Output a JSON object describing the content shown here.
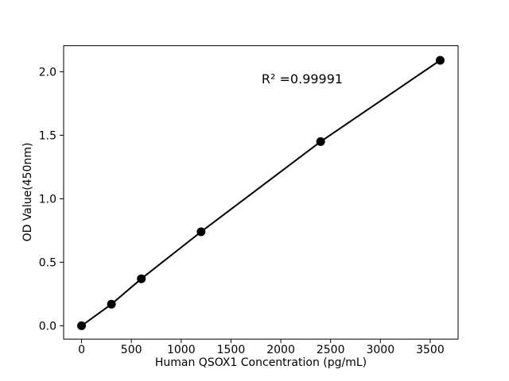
{
  "chart_data": {
    "type": "scatter",
    "title": "",
    "xlabel": "Human QSOX1 Concentration (pg/mL)",
    "ylabel": "OD Value(450nm)",
    "annotation": "R² =0.99991",
    "x": [
      0,
      300,
      600,
      1200,
      2400,
      3600
    ],
    "y": [
      0.0,
      0.17,
      0.37,
      0.74,
      1.45,
      2.09
    ],
    "x_ticks": [
      "0",
      "500",
      "1000",
      "1500",
      "2000",
      "2500",
      "3000",
      "3500"
    ],
    "y_ticks": [
      "0.0",
      "0.5",
      "1.0",
      "1.5",
      "2.0"
    ],
    "xlim": [
      -180,
      3780
    ],
    "ylim": [
      -0.105,
      2.205
    ],
    "grid": false,
    "legend": "none",
    "line_color": "#000000",
    "marker_color": "#000000",
    "axis_color": "#000000",
    "text_color": "#000000",
    "background_color": "#ffffff"
  }
}
